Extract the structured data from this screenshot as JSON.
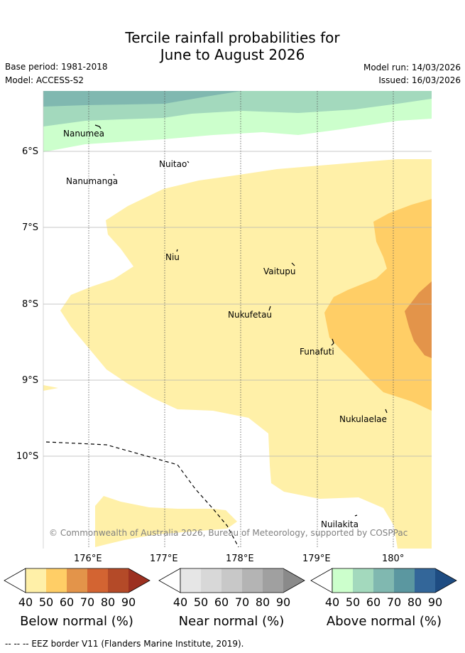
{
  "header": {
    "title_line1": "Tercile rainfall probabilities for",
    "title_line2": "June to August 2026",
    "base_period": "Base period: 1981-2018",
    "model": "Model: ACCESS-S2",
    "model_run": "Model run: 14/03/2026",
    "issued": "Issued: 16/03/2026"
  },
  "map": {
    "lat_labels": [
      "6°S",
      "7°S",
      "8°S",
      "9°S",
      "10°S"
    ],
    "lon_labels": [
      "176°E",
      "177°E",
      "178°E",
      "179°E",
      "180°"
    ],
    "places": [
      "Nanumea",
      "Nuitao",
      "Nanumanga",
      "Niu",
      "Vaitupu",
      "Nukufetau",
      "Funafuti",
      "Nukulaelae",
      "Nuilakita"
    ],
    "copyright": "© Commonwealth of Australia 2026, Bureau of Meteorology, supported by COSPPac"
  },
  "legend": {
    "ticks": [
      "40",
      "50",
      "60",
      "70",
      "80",
      "90"
    ],
    "below": {
      "title": "Below normal (%)",
      "colors": [
        "#fff0a8",
        "#ffce66",
        "#e3944a",
        "#d36432",
        "#b44a28",
        "#9c3020"
      ]
    },
    "near": {
      "title": "Near normal (%)",
      "colors": [
        "#e6e6e6",
        "#d8d8d8",
        "#c8c8c8",
        "#b4b4b4",
        "#a0a0a0",
        "#8a8a8a"
      ]
    },
    "above": {
      "title": "Above normal (%)",
      "colors": [
        "#ccffcc",
        "#a3d9bd",
        "#80b8b0",
        "#5b97a0",
        "#336699",
        "#1e4c82"
      ]
    }
  },
  "footnote": "--  --  -- EEZ border V11 (Flanders Marine Institute, 2019)."
}
